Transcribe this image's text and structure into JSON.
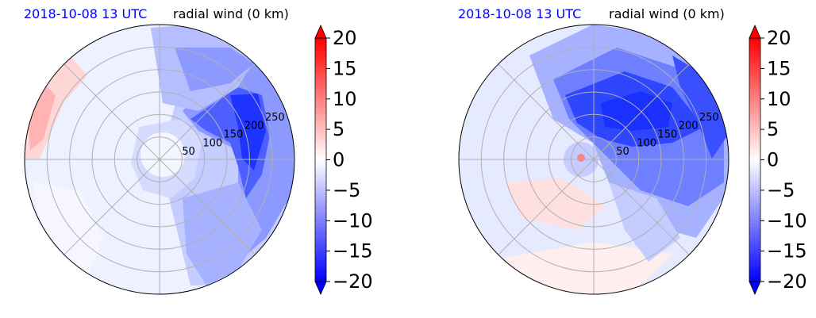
{
  "chart_data": [
    {
      "type": "heatmap",
      "projection": "polar",
      "title_left": "2018-10-08 13 UTC",
      "title_right": "radial wind (0 km)",
      "radial_ticks": [
        50,
        100,
        150,
        200,
        250
      ],
      "r_max": 300,
      "grid": true,
      "colorbar": {
        "ticks": [
          20,
          15,
          10,
          5,
          0,
          -5,
          -10,
          -15,
          -20
        ],
        "tick_labels": [
          "20",
          "15",
          "10",
          "5",
          "0",
          "−5",
          "−10",
          "−15",
          "−20"
        ],
        "range": [
          -20,
          20
        ],
        "colormap": "bwr",
        "extend": "both"
      },
      "colors": {
        "positive": "#ff0000",
        "zero": "#ffffff",
        "negative": "#0000ff"
      }
    },
    {
      "type": "heatmap",
      "projection": "polar",
      "title_left": "2018-10-08 13 UTC",
      "title_right": "radial wind (0 km)",
      "radial_ticks": [
        50,
        100,
        150,
        200,
        250
      ],
      "r_max": 300,
      "grid": true,
      "colorbar": {
        "ticks": [
          20,
          15,
          10,
          5,
          0,
          -5,
          -10,
          -15,
          -20
        ],
        "tick_labels": [
          "20",
          "15",
          "10",
          "5",
          "0",
          "−5",
          "−10",
          "−15",
          "−20"
        ],
        "range": [
          -20,
          20
        ],
        "colormap": "bwr",
        "extend": "both"
      },
      "colors": {
        "positive": "#ff0000",
        "zero": "#ffffff",
        "negative": "#0000ff"
      }
    }
  ]
}
